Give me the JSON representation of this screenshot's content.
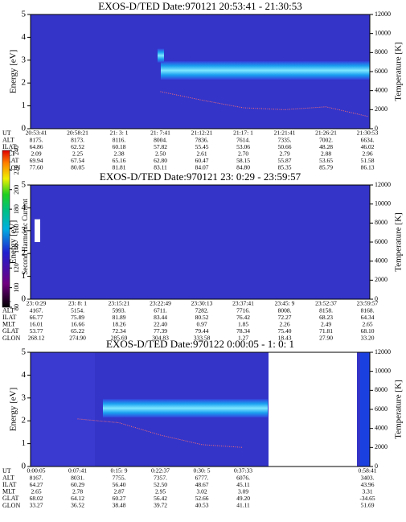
{
  "chart_data": [
    {
      "type": "spectrogram",
      "title": "EXOS-D/TED   Date:970121  20:53:41 - 21:30:53",
      "ylabel": "Energy [eV]",
      "y2label": "Temperature [K]",
      "ylim": [
        0,
        5
      ],
      "yticks": [
        0,
        1,
        2,
        3,
        4,
        5
      ],
      "y2lim": [
        0,
        12000
      ],
      "y2ticks": [
        0,
        2000,
        4000,
        6000,
        8000,
        10000,
        12000
      ],
      "temperature": {
        "color": "#ff7070",
        "axis": "y2",
        "values": [
          null,
          null,
          null,
          3900,
          3000,
          2200,
          2000,
          2300,
          1300
        ]
      },
      "table": {
        "row_labels": [
          "UT",
          "ALT",
          "ILAT",
          "MLT",
          "GLAT",
          "GLON"
        ],
        "rows": [
          [
            "20:53:41",
            "20:58:21",
            "21: 3: 1",
            "21: 7:41",
            "21:12:21",
            "21:17: 1",
            "21:21:41",
            "21:26:21",
            "21:30:53"
          ],
          [
            "8175.",
            "8173.",
            "8116.",
            "8004.",
            "7836.",
            "7614.",
            "7335.",
            "7002.",
            "6634."
          ],
          [
            "64.86",
            "62.52",
            "60.18",
            "57.82",
            "55.45",
            "53.06",
            "50.66",
            "48.28",
            "46.02"
          ],
          [
            "2.09",
            "2.25",
            "2.38",
            "2.50",
            "2.61",
            "2.70",
            "2.79",
            "2.88",
            "2.96"
          ],
          [
            "69.94",
            "67.54",
            "65.16",
            "62.80",
            "60.47",
            "58.15",
            "55.87",
            "53.65",
            "51.58"
          ],
          [
            "77.60",
            "80.05",
            "81.81",
            "83.11",
            "84.07",
            "84.80",
            "85.35",
            "85.79",
            "86.13"
          ]
        ]
      }
    },
    {
      "type": "spectrogram",
      "title": "EXOS-D/TED   Date:970121  23: 0:29 - 23:59:57",
      "ylabel": "Energy [eV]",
      "y2label": "Temperature [K]",
      "ylim": [
        0,
        5
      ],
      "yticks": [
        0,
        1,
        2,
        3,
        4,
        5
      ],
      "y2lim": [
        0,
        12000
      ],
      "y2ticks": [
        0,
        2000,
        4000,
        6000,
        8000,
        10000,
        12000
      ],
      "table": {
        "row_labels": [
          "UT",
          "ALT",
          "ILAT",
          "MLT",
          "GLAT",
          "GLON"
        ],
        "rows": [
          [
            "23: 0:29",
            "23: 8: 1",
            "23:15:21",
            "23:22:49",
            "23:30:13",
            "23:37:41",
            "23:45: 9",
            "23:52:37",
            "23:59:57"
          ],
          [
            "4167.",
            "5154.",
            "5993.",
            "6711.",
            "7282.",
            "7716.",
            "8008.",
            "8158.",
            "8168."
          ],
          [
            "66.77",
            "75.89",
            "81.89",
            "83.44",
            "80.52",
            "76.42",
            "72.27",
            "68.23",
            "64.34"
          ],
          [
            "16.01",
            "16.66",
            "18.26",
            "22.40",
            "0.97",
            "1.85",
            "2.26",
            "2.49",
            "2.65"
          ],
          [
            "53.77",
            "65.22",
            "72.34",
            "77.39",
            "79.44",
            "78.34",
            "75.40",
            "71.81",
            "68.10"
          ],
          [
            "268.12",
            "274.90",
            "285.69",
            "304.83",
            "333.58",
            "1.27",
            "18.43",
            "27.90",
            "33.20"
          ]
        ]
      }
    },
    {
      "type": "spectrogram",
      "title": "EXOS-D/TED   Date:970122  0:00:05 - 1: 0: 1",
      "ylabel": "Energy [eV]",
      "y2label": "Temperature [K]",
      "ylim": [
        0,
        5
      ],
      "yticks": [
        0,
        1,
        2,
        3,
        4,
        5
      ],
      "y2lim": [
        0,
        12000
      ],
      "y2ticks": [
        0,
        2000,
        4000,
        6000,
        8000,
        10000,
        12000
      ],
      "temperature": {
        "color": "#ff7070",
        "axis": "y2",
        "values": [
          null,
          5000,
          4600,
          3300,
          2300,
          2000,
          null,
          null,
          null
        ]
      },
      "table": {
        "row_labels": [
          "UT",
          "ALT",
          "ILAT",
          "MLT",
          "GLAT",
          "GLON"
        ],
        "rows": [
          [
            "0:00:05",
            "0:07:41",
            "0:15: 9",
            "0:22:37",
            "0:30: 5",
            "0:37:33",
            null,
            null,
            "0:58:41"
          ],
          [
            "8167.",
            "8031.",
            "7755.",
            "7357.",
            "6777.",
            "6076.",
            null,
            null,
            "3403."
          ],
          [
            "64.27",
            "60.29",
            "56.40",
            "52.50",
            "48.67",
            "45.11",
            null,
            null,
            "43.96"
          ],
          [
            "2.65",
            "2.78",
            "2.87",
            "2.95",
            "3.02",
            "3.09",
            null,
            null,
            "3.31"
          ],
          [
            "68.02",
            "64.12",
            "60.27",
            "56.42",
            "52.66",
            "49.20",
            null,
            null,
            "-34.65"
          ],
          [
            "33.27",
            "36.52",
            "38.48",
            "39.72",
            "40.53",
            "41.11",
            null,
            null,
            "51.69"
          ]
        ]
      }
    }
  ],
  "colorbar": {
    "label": "Second Harmonic Current",
    "lim": [
      80,
      240
    ],
    "ticks": [
      80,
      100,
      120,
      140,
      160,
      180,
      200,
      220,
      240
    ]
  }
}
